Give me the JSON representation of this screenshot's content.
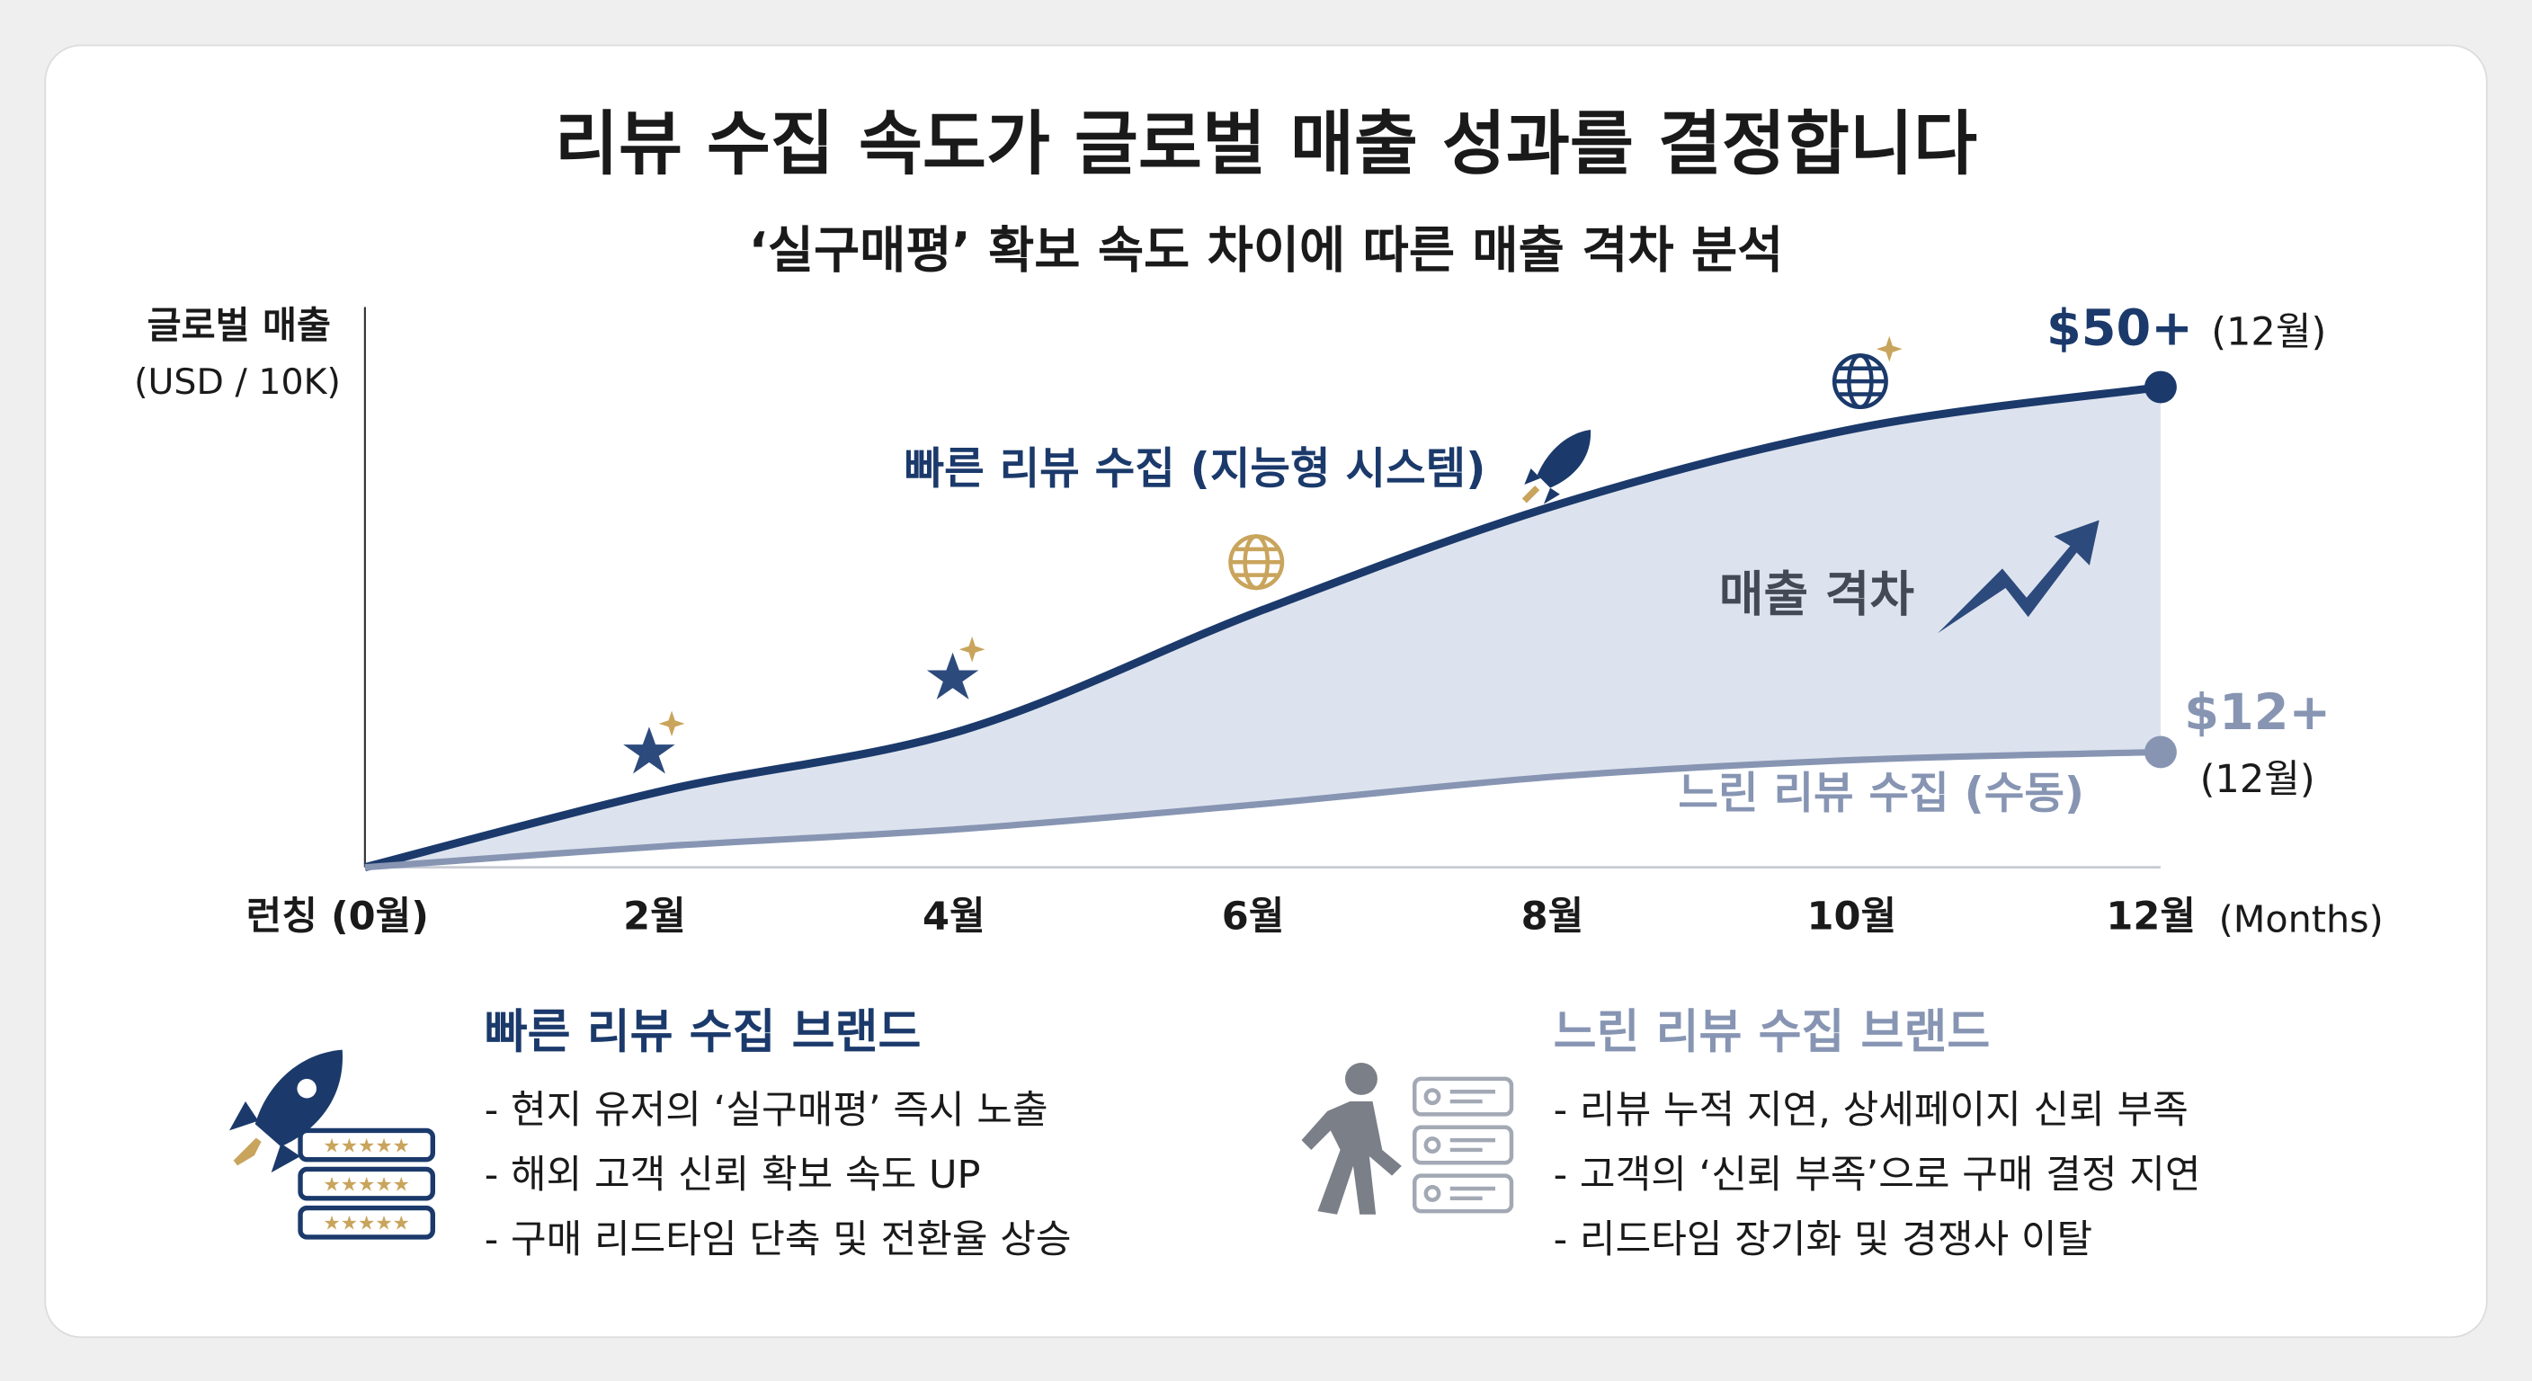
{
  "chart_data": {
    "type": "line",
    "title": "리뷰 수집 속도가 글로벌 매출 성과를 결정합니다",
    "subtitle": "‘실구매평’ 확보 속도 차이에 따른 매출 격차 분석",
    "y_label": "글로벌 매출",
    "y_unit": "(USD / 10K)",
    "x_label": "(Months)",
    "categories": [
      "런칭 (0월)",
      "2월",
      "4월",
      "6월",
      "8월",
      "10월",
      "12월"
    ],
    "series": [
      {
        "name": "빠른 리뷰 수집 (지능형 시스템)",
        "color": "#1b3a6b",
        "values": [
          0,
          8,
          14.3,
          26.8,
          37.9,
          45.8,
          50
        ],
        "value_labels": [
          null,
          null,
          null,
          null,
          null,
          null,
          "$50+"
        ],
        "end_note": "(12월)"
      },
      {
        "name": "느린 리뷰 수집 (수동)",
        "color": "#8795b3",
        "values": [
          0,
          2.2,
          4,
          6.6,
          9.5,
          11.2,
          12
        ],
        "value_labels": [
          null,
          null,
          null,
          null,
          null,
          null,
          "$12+"
        ],
        "end_note": "(12월)"
      }
    ],
    "gap_label": "매출 격차",
    "gap_color": "#dde3ee",
    "ylim": [
      0,
      58
    ]
  },
  "panels": [
    {
      "title": "빠른 리뷰 수집 브랜드",
      "items": [
        "- 현지 유저의 ‘실구매평’ 즉시 노출",
        "- 해외 고객 신뢰 확보 속도 UP",
        "- 구매 리드타임 단축 및 전환율 상승"
      ]
    },
    {
      "title": "느린 리뷰 수집 브랜드",
      "items": [
        "- 리뷰 누적 지연, 상세페이지 신뢰 부족",
        "- 고객의 ‘신뢰 부족’으로 구매 결정 지연",
        "- 리드타임 장기화 및 경쟁사 이탈"
      ]
    }
  ]
}
